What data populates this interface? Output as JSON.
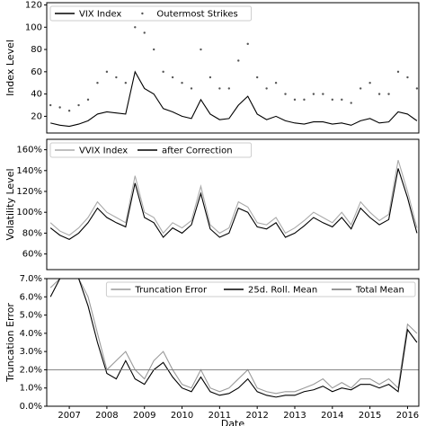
{
  "chart_data": [
    {
      "type": "line",
      "ylabel": "Index Level",
      "legend": "upper left",
      "xlim": [
        2006.4,
        2016.3
      ],
      "ylim": [
        5,
        122
      ],
      "yticks": [
        20,
        40,
        60,
        80,
        100,
        120
      ],
      "x": [
        2006.5,
        2006.75,
        2007,
        2007.25,
        2007.5,
        2007.75,
        2008,
        2008.25,
        2008.5,
        2008.75,
        2009,
        2009.25,
        2009.5,
        2009.75,
        2010,
        2010.25,
        2010.5,
        2010.75,
        2011,
        2011.25,
        2011.5,
        2011.75,
        2012,
        2012.25,
        2012.5,
        2012.75,
        2013,
        2013.25,
        2013.5,
        2013.75,
        2014,
        2014.25,
        2014.5,
        2014.75,
        2015,
        2015.25,
        2015.5,
        2015.75,
        2016,
        2016.25
      ],
      "series": [
        {
          "name": "VIX Index",
          "color": "#000000",
          "style": "line",
          "values": [
            14,
            12,
            11,
            13,
            16,
            22,
            24,
            23,
            22,
            60,
            45,
            40,
            27,
            24,
            20,
            18,
            35,
            22,
            17,
            18,
            30,
            38,
            22,
            17,
            20,
            16,
            14,
            13,
            15,
            15,
            13,
            14,
            12,
            16,
            18,
            14,
            15,
            24,
            22,
            16
          ]
        },
        {
          "name": "Outermost Strikes",
          "color": "#555555",
          "style": "scatter",
          "values": [
            30,
            28,
            25,
            30,
            35,
            50,
            60,
            55,
            50,
            100,
            95,
            80,
            60,
            55,
            50,
            45,
            80,
            55,
            45,
            45,
            70,
            85,
            55,
            45,
            50,
            40,
            35,
            35,
            40,
            40,
            35,
            35,
            32,
            45,
            50,
            40,
            40,
            60,
            55,
            45
          ]
        }
      ]
    },
    {
      "type": "line",
      "ylabel": "Volatility Level",
      "legend": "upper left",
      "xlim": [
        2006.4,
        2016.3
      ],
      "ylim": [
        45,
        170
      ],
      "yticks": [
        {
          "value": 60,
          "label": "60%"
        },
        {
          "value": 80,
          "label": "80%"
        },
        {
          "value": 100,
          "label": "100%"
        },
        {
          "value": 120,
          "label": "120%"
        },
        {
          "value": 140,
          "label": "140%"
        },
        {
          "value": 160,
          "label": "160%"
        }
      ],
      "x": [
        2006.5,
        2006.75,
        2007,
        2007.25,
        2007.5,
        2007.75,
        2008,
        2008.25,
        2008.5,
        2008.75,
        2009,
        2009.25,
        2009.5,
        2009.75,
        2010,
        2010.25,
        2010.5,
        2010.75,
        2011,
        2011.25,
        2011.5,
        2011.75,
        2012,
        2012.25,
        2012.5,
        2012.75,
        2013,
        2013.25,
        2013.5,
        2013.75,
        2014,
        2014.25,
        2014.5,
        2014.75,
        2015,
        2015.25,
        2015.5,
        2015.75,
        2016,
        2016.25
      ],
      "series": [
        {
          "name": "VVIX Index",
          "color": "#aaaaaa",
          "style": "line",
          "values": [
            90,
            82,
            78,
            85,
            95,
            110,
            100,
            95,
            90,
            135,
            100,
            95,
            80,
            90,
            85,
            92,
            125,
            88,
            80,
            85,
            110,
            105,
            90,
            88,
            95,
            80,
            85,
            92,
            100,
            95,
            90,
            100,
            88,
            110,
            100,
            92,
            98,
            150,
            120,
            85
          ]
        },
        {
          "name": "after Correction",
          "color": "#000000",
          "style": "line",
          "values": [
            85,
            78,
            74,
            80,
            90,
            104,
            95,
            90,
            86,
            128,
            95,
            90,
            76,
            85,
            80,
            88,
            118,
            84,
            76,
            80,
            104,
            100,
            86,
            84,
            90,
            76,
            80,
            87,
            95,
            90,
            86,
            95,
            84,
            104,
            95,
            88,
            93,
            142,
            114,
            80
          ]
        }
      ]
    },
    {
      "type": "line",
      "ylabel": "Truncation Error",
      "xlabel": "Date",
      "legend": "upper right",
      "xlim": [
        2006.4,
        2016.3
      ],
      "ylim": [
        0,
        7
      ],
      "xticks": [
        2007,
        2008,
        2009,
        2010,
        2011,
        2012,
        2013,
        2014,
        2015,
        2016
      ],
      "yticks": [
        {
          "value": 0,
          "label": "0.0%"
        },
        {
          "value": 1,
          "label": "1.0%"
        },
        {
          "value": 2,
          "label": "2.0%"
        },
        {
          "value": 3,
          "label": "3.0%"
        },
        {
          "value": 4,
          "label": "4.0%"
        },
        {
          "value": 5,
          "label": "5.0%"
        },
        {
          "value": 6,
          "label": "6.0%"
        },
        {
          "value": 7,
          "label": "7.0%"
        }
      ],
      "x": [
        2006.5,
        2006.75,
        2007,
        2007.25,
        2007.5,
        2007.75,
        2008,
        2008.25,
        2008.5,
        2008.75,
        2009,
        2009.25,
        2009.5,
        2009.75,
        2010,
        2010.25,
        2010.5,
        2010.75,
        2011,
        2011.25,
        2011.5,
        2011.75,
        2012,
        2012.25,
        2012.5,
        2012.75,
        2013,
        2013.25,
        2013.5,
        2013.75,
        2014,
        2014.25,
        2014.5,
        2014.75,
        2015,
        2015.25,
        2015.5,
        2015.75,
        2016,
        2016.25
      ],
      "series": [
        {
          "name": "Truncation Error",
          "color": "#999999",
          "style": "line",
          "values": [
            6.5,
            7,
            7,
            7,
            6,
            4,
            2,
            2.5,
            3,
            2,
            1.5,
            2.5,
            3,
            2,
            1.2,
            1,
            2,
            1,
            0.8,
            1,
            1.5,
            2,
            1,
            0.8,
            0.7,
            0.8,
            0.8,
            1,
            1.2,
            1.5,
            1,
            1.3,
            1,
            1.5,
            1.5,
            1.2,
            1.5,
            1,
            4.5,
            4
          ]
        },
        {
          "name": "25d. Roll. Mean",
          "color": "#000000",
          "style": "line",
          "values": [
            6,
            7,
            7,
            7,
            5.5,
            3.5,
            1.8,
            1.5,
            2.5,
            1.5,
            1.2,
            2,
            2.4,
            1.6,
            1,
            0.8,
            1.6,
            0.8,
            0.6,
            0.7,
            1,
            1.5,
            0.8,
            0.6,
            0.5,
            0.6,
            0.6,
            0.8,
            0.9,
            1.1,
            0.8,
            1,
            0.9,
            1.2,
            1.2,
            1,
            1.2,
            0.8,
            4.2,
            3.5
          ]
        }
      ],
      "reference_line": {
        "name": "Total Mean",
        "value": 2.0,
        "color": "#777777"
      }
    }
  ]
}
